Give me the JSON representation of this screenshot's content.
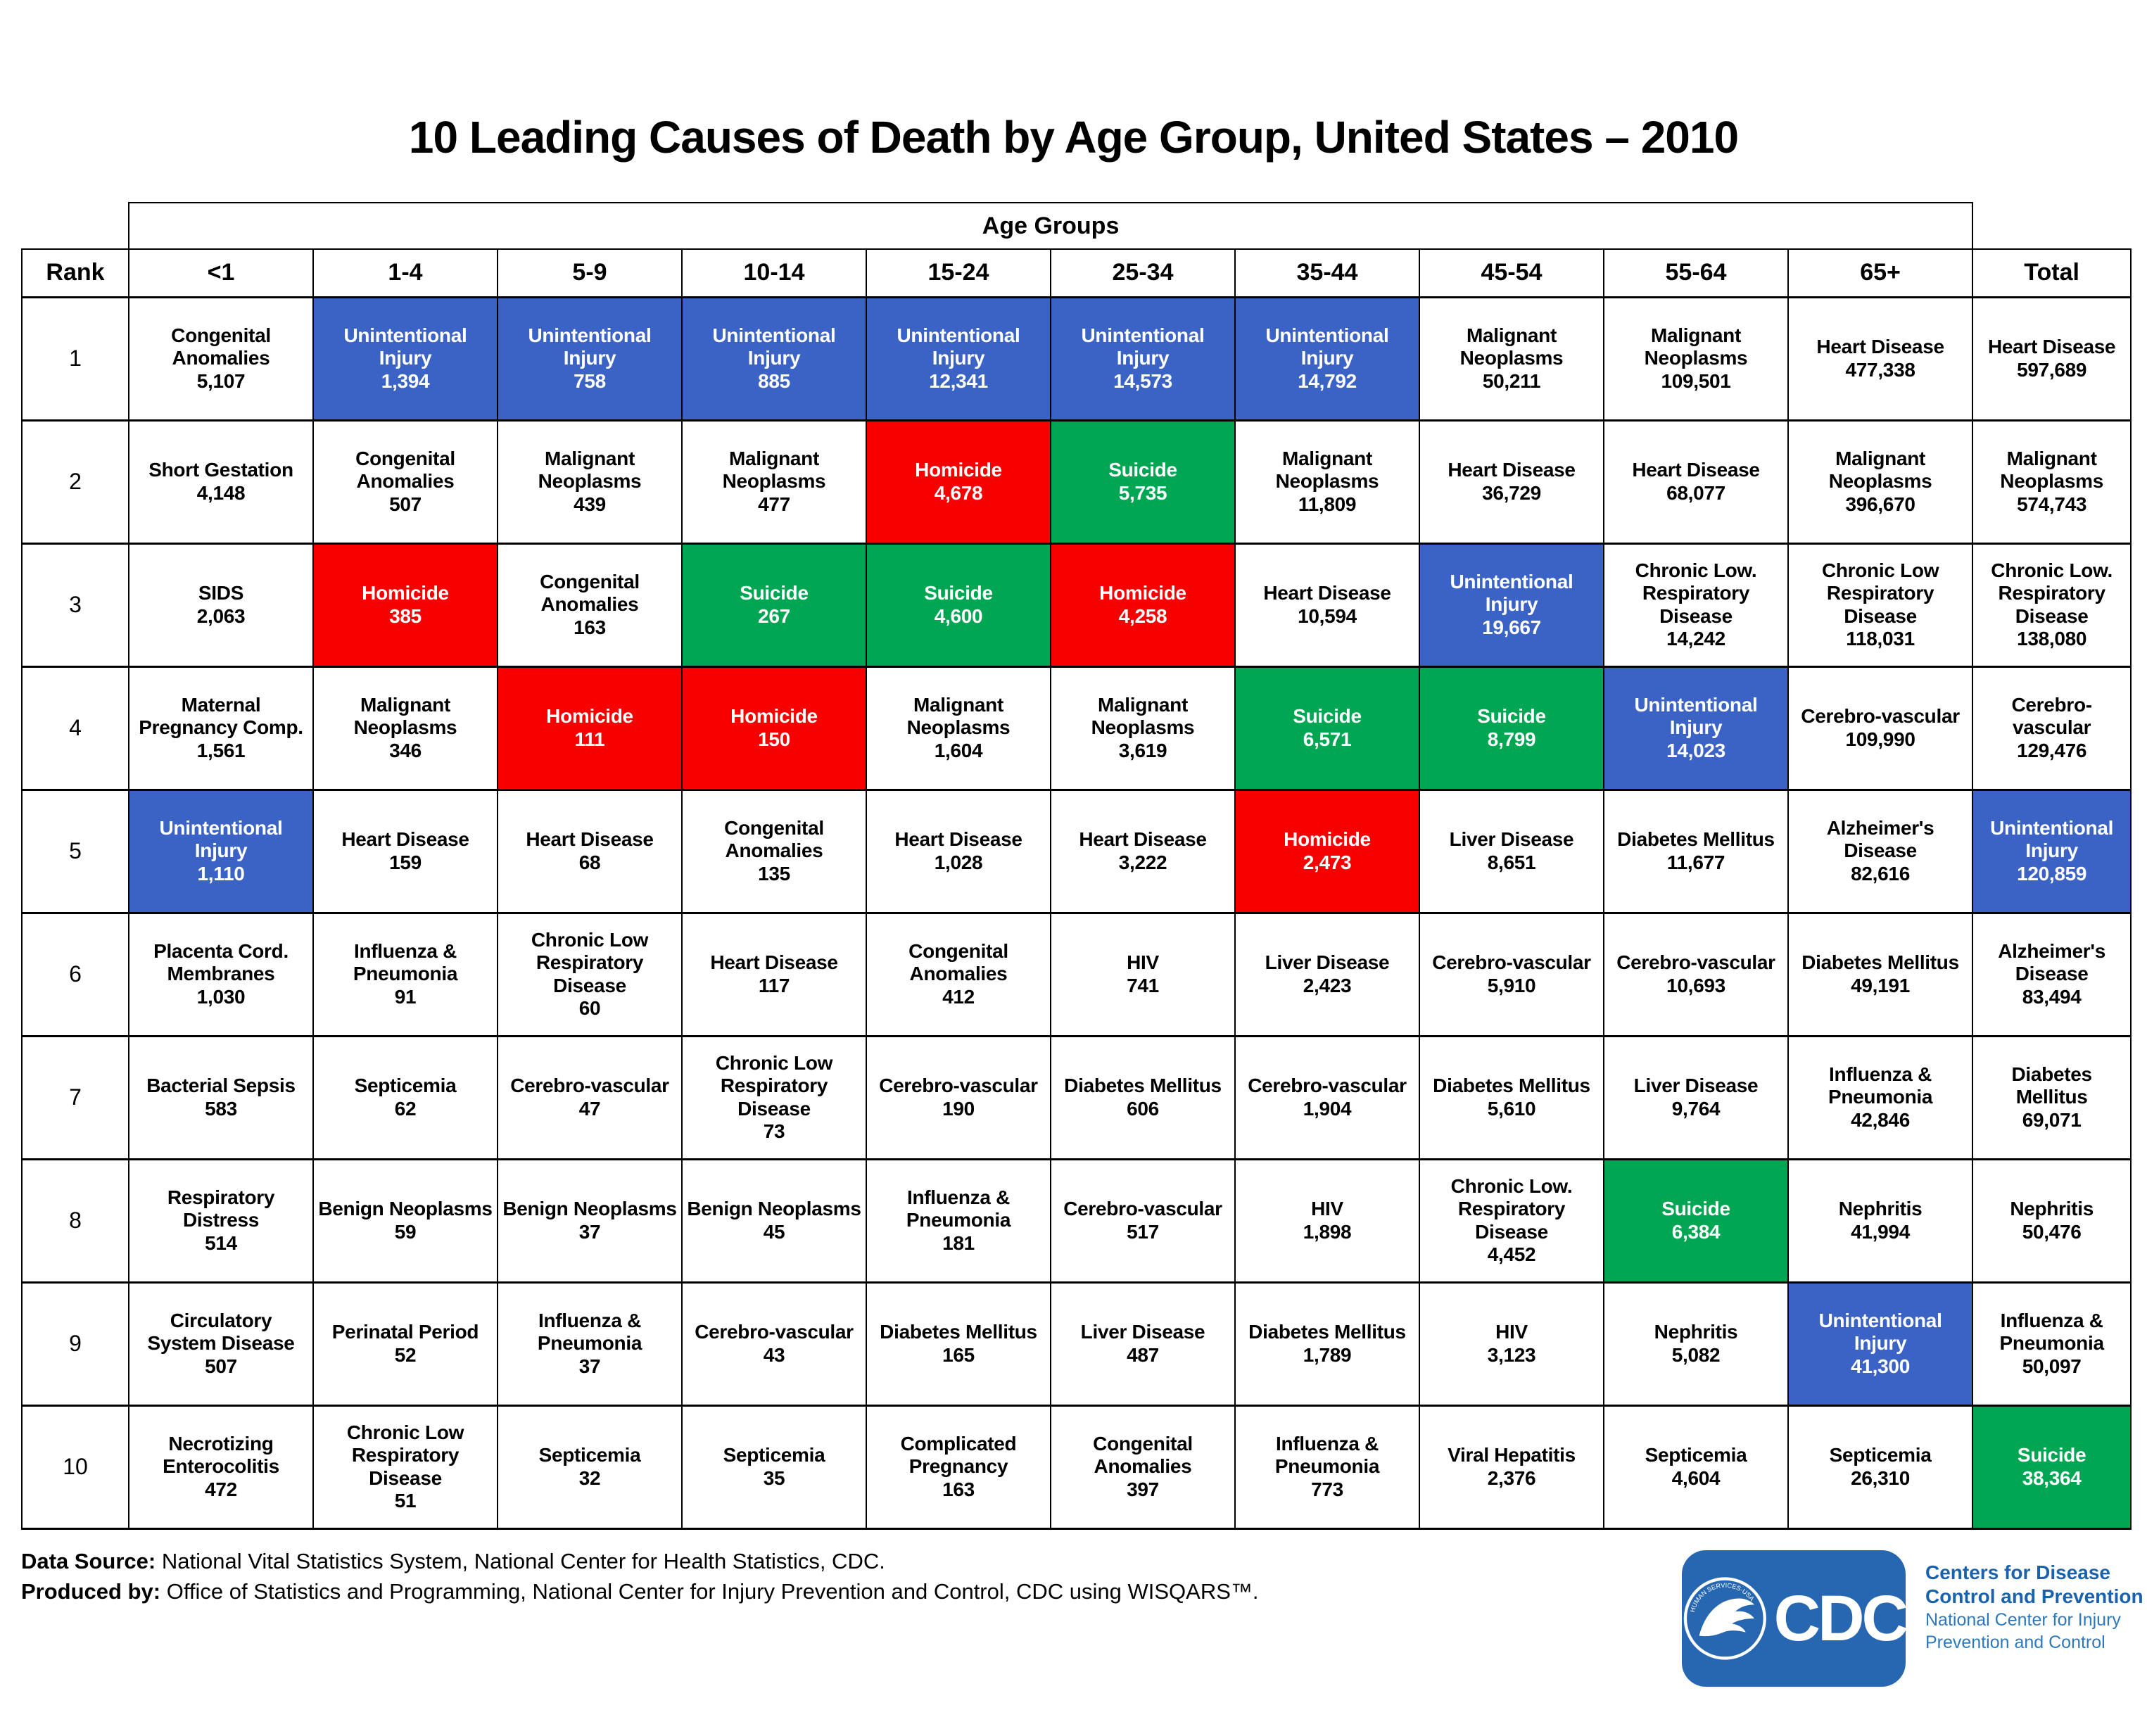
{
  "chart_data": {
    "type": "table",
    "title": "10 Leading Causes of Death by Age Group, United States – 2010",
    "group_header": "Age Groups",
    "rank_label": "Rank",
    "age_columns": [
      "<1",
      "1-4",
      "5-9",
      "10-14",
      "15-24",
      "25-34",
      "35-44",
      "45-54",
      "55-64",
      "65+"
    ],
    "total_column": "Total",
    "rows": [
      {
        "rank": 1,
        "cells": [
          {
            "cause": "Congenital Anomalies",
            "deaths": "5,107",
            "category": "other"
          },
          {
            "cause": "Unintentional Injury",
            "deaths": "1,394",
            "category": "injury"
          },
          {
            "cause": "Unintentional Injury",
            "deaths": "758",
            "category": "injury"
          },
          {
            "cause": "Unintentional Injury",
            "deaths": "885",
            "category": "injury"
          },
          {
            "cause": "Unintentional Injury",
            "deaths": "12,341",
            "category": "injury"
          },
          {
            "cause": "Unintentional Injury",
            "deaths": "14,573",
            "category": "injury"
          },
          {
            "cause": "Unintentional Injury",
            "deaths": "14,792",
            "category": "injury"
          },
          {
            "cause": "Malignant Neoplasms",
            "deaths": "50,211",
            "category": "other"
          },
          {
            "cause": "Malignant Neoplasms",
            "deaths": "109,501",
            "category": "other"
          },
          {
            "cause": "Heart Disease",
            "deaths": "477,338",
            "category": "other"
          },
          {
            "cause": "Heart Disease",
            "deaths": "597,689",
            "category": "other"
          }
        ]
      },
      {
        "rank": 2,
        "cells": [
          {
            "cause": "Short Gestation",
            "deaths": "4,148",
            "category": "other"
          },
          {
            "cause": "Congenital Anomalies",
            "deaths": "507",
            "category": "other"
          },
          {
            "cause": "Malignant Neoplasms",
            "deaths": "439",
            "category": "other"
          },
          {
            "cause": "Malignant Neoplasms",
            "deaths": "477",
            "category": "other"
          },
          {
            "cause": "Homicide",
            "deaths": "4,678",
            "category": "homicide"
          },
          {
            "cause": "Suicide",
            "deaths": "5,735",
            "category": "suicide"
          },
          {
            "cause": "Malignant Neoplasms",
            "deaths": "11,809",
            "category": "other"
          },
          {
            "cause": "Heart Disease",
            "deaths": "36,729",
            "category": "other"
          },
          {
            "cause": "Heart Disease",
            "deaths": "68,077",
            "category": "other"
          },
          {
            "cause": "Malignant Neoplasms",
            "deaths": "396,670",
            "category": "other"
          },
          {
            "cause": "Malignant Neoplasms",
            "deaths": "574,743",
            "category": "other"
          }
        ]
      },
      {
        "rank": 3,
        "cells": [
          {
            "cause": "SIDS",
            "deaths": "2,063",
            "category": "other"
          },
          {
            "cause": "Homicide",
            "deaths": "385",
            "category": "homicide"
          },
          {
            "cause": "Congenital Anomalies",
            "deaths": "163",
            "category": "other"
          },
          {
            "cause": "Suicide",
            "deaths": "267",
            "category": "suicide"
          },
          {
            "cause": "Suicide",
            "deaths": "4,600",
            "category": "suicide"
          },
          {
            "cause": "Homicide",
            "deaths": "4,258",
            "category": "homicide"
          },
          {
            "cause": "Heart Disease",
            "deaths": "10,594",
            "category": "other"
          },
          {
            "cause": "Unintentional Injury",
            "deaths": "19,667",
            "category": "injury"
          },
          {
            "cause": "Chronic Low. Respiratory Disease",
            "deaths": "14,242",
            "category": "other"
          },
          {
            "cause": "Chronic Low Respiratory Disease",
            "deaths": "118,031",
            "category": "other"
          },
          {
            "cause": "Chronic Low. Respiratory Disease",
            "deaths": "138,080",
            "category": "other"
          }
        ]
      },
      {
        "rank": 4,
        "cells": [
          {
            "cause": "Maternal Pregnancy Comp.",
            "deaths": "1,561",
            "category": "other"
          },
          {
            "cause": "Malignant Neoplasms",
            "deaths": "346",
            "category": "other"
          },
          {
            "cause": "Homicide",
            "deaths": "111",
            "category": "homicide"
          },
          {
            "cause": "Homicide",
            "deaths": "150",
            "category": "homicide"
          },
          {
            "cause": "Malignant Neoplasms",
            "deaths": "1,604",
            "category": "other"
          },
          {
            "cause": "Malignant Neoplasms",
            "deaths": "3,619",
            "category": "other"
          },
          {
            "cause": "Suicide",
            "deaths": "6,571",
            "category": "suicide"
          },
          {
            "cause": "Suicide",
            "deaths": "8,799",
            "category": "suicide"
          },
          {
            "cause": "Unintentional Injury",
            "deaths": "14,023",
            "category": "injury"
          },
          {
            "cause": "Cerebro-vascular",
            "deaths": "109,990",
            "category": "other"
          },
          {
            "cause": "Cerebro-vascular",
            "deaths": "129,476",
            "category": "other"
          }
        ]
      },
      {
        "rank": 5,
        "cells": [
          {
            "cause": "Unintentional Injury",
            "deaths": "1,110",
            "category": "injury"
          },
          {
            "cause": "Heart Disease",
            "deaths": "159",
            "category": "other"
          },
          {
            "cause": "Heart Disease",
            "deaths": "68",
            "category": "other"
          },
          {
            "cause": "Congenital Anomalies",
            "deaths": "135",
            "category": "other"
          },
          {
            "cause": "Heart Disease",
            "deaths": "1,028",
            "category": "other"
          },
          {
            "cause": "Heart Disease",
            "deaths": "3,222",
            "category": "other"
          },
          {
            "cause": "Homicide",
            "deaths": "2,473",
            "category": "homicide"
          },
          {
            "cause": "Liver Disease",
            "deaths": "8,651",
            "category": "other"
          },
          {
            "cause": "Diabetes Mellitus",
            "deaths": "11,677",
            "category": "other"
          },
          {
            "cause": "Alzheimer's Disease",
            "deaths": "82,616",
            "category": "other"
          },
          {
            "cause": "Unintentional Injury",
            "deaths": "120,859",
            "category": "injury"
          }
        ]
      },
      {
        "rank": 6,
        "cells": [
          {
            "cause": "Placenta Cord. Membranes",
            "deaths": "1,030",
            "category": "other"
          },
          {
            "cause": "Influenza & Pneumonia",
            "deaths": "91",
            "category": "other"
          },
          {
            "cause": "Chronic Low Respiratory Disease",
            "deaths": "60",
            "category": "other"
          },
          {
            "cause": "Heart Disease",
            "deaths": "117",
            "category": "other"
          },
          {
            "cause": "Congenital Anomalies",
            "deaths": "412",
            "category": "other"
          },
          {
            "cause": "HIV",
            "deaths": "741",
            "category": "other"
          },
          {
            "cause": "Liver Disease",
            "deaths": "2,423",
            "category": "other"
          },
          {
            "cause": "Cerebro-vascular",
            "deaths": "5,910",
            "category": "other"
          },
          {
            "cause": "Cerebro-vascular",
            "deaths": "10,693",
            "category": "other"
          },
          {
            "cause": "Diabetes Mellitus",
            "deaths": "49,191",
            "category": "other"
          },
          {
            "cause": "Alzheimer's Disease",
            "deaths": "83,494",
            "category": "other"
          }
        ]
      },
      {
        "rank": 7,
        "cells": [
          {
            "cause": "Bacterial Sepsis",
            "deaths": "583",
            "category": "other"
          },
          {
            "cause": "Septicemia",
            "deaths": "62",
            "category": "other"
          },
          {
            "cause": "Cerebro-vascular",
            "deaths": "47",
            "category": "other"
          },
          {
            "cause": "Chronic Low Respiratory Disease",
            "deaths": "73",
            "category": "other"
          },
          {
            "cause": "Cerebro-vascular",
            "deaths": "190",
            "category": "other"
          },
          {
            "cause": "Diabetes Mellitus",
            "deaths": "606",
            "category": "other"
          },
          {
            "cause": "Cerebro-vascular",
            "deaths": "1,904",
            "category": "other"
          },
          {
            "cause": "Diabetes Mellitus",
            "deaths": "5,610",
            "category": "other"
          },
          {
            "cause": "Liver Disease",
            "deaths": "9,764",
            "category": "other"
          },
          {
            "cause": "Influenza & Pneumonia",
            "deaths": "42,846",
            "category": "other"
          },
          {
            "cause": "Diabetes Mellitus",
            "deaths": "69,071",
            "category": "other"
          }
        ]
      },
      {
        "rank": 8,
        "cells": [
          {
            "cause": "Respiratory Distress",
            "deaths": "514",
            "category": "other"
          },
          {
            "cause": "Benign Neoplasms",
            "deaths": "59",
            "category": "other"
          },
          {
            "cause": "Benign Neoplasms",
            "deaths": "37",
            "category": "other"
          },
          {
            "cause": "Benign Neoplasms",
            "deaths": "45",
            "category": "other"
          },
          {
            "cause": "Influenza & Pneumonia",
            "deaths": "181",
            "category": "other"
          },
          {
            "cause": "Cerebro-vascular",
            "deaths": "517",
            "category": "other"
          },
          {
            "cause": "HIV",
            "deaths": "1,898",
            "category": "other"
          },
          {
            "cause": "Chronic Low. Respiratory Disease",
            "deaths": "4,452",
            "category": "other"
          },
          {
            "cause": "Suicide",
            "deaths": "6,384",
            "category": "suicide"
          },
          {
            "cause": "Nephritis",
            "deaths": "41,994",
            "category": "other"
          },
          {
            "cause": "Nephritis",
            "deaths": "50,476",
            "category": "other"
          }
        ]
      },
      {
        "rank": 9,
        "cells": [
          {
            "cause": "Circulatory System Disease",
            "deaths": "507",
            "category": "other"
          },
          {
            "cause": "Perinatal Period",
            "deaths": "52",
            "category": "other"
          },
          {
            "cause": "Influenza & Pneumonia",
            "deaths": "37",
            "category": "other"
          },
          {
            "cause": "Cerebro-vascular",
            "deaths": "43",
            "category": "other"
          },
          {
            "cause": "Diabetes Mellitus",
            "deaths": "165",
            "category": "other"
          },
          {
            "cause": "Liver Disease",
            "deaths": "487",
            "category": "other"
          },
          {
            "cause": "Diabetes Mellitus",
            "deaths": "1,789",
            "category": "other"
          },
          {
            "cause": "HIV",
            "deaths": "3,123",
            "category": "other"
          },
          {
            "cause": "Nephritis",
            "deaths": "5,082",
            "category": "other"
          },
          {
            "cause": "Unintentional Injury",
            "deaths": "41,300",
            "category": "injury"
          },
          {
            "cause": "Influenza & Pneumonia",
            "deaths": "50,097",
            "category": "other"
          }
        ]
      },
      {
        "rank": 10,
        "cells": [
          {
            "cause": "Necrotizing Enterocolitis",
            "deaths": "472",
            "category": "other"
          },
          {
            "cause": "Chronic Low Respiratory Disease",
            "deaths": "51",
            "category": "other"
          },
          {
            "cause": "Septicemia",
            "deaths": "32",
            "category": "other"
          },
          {
            "cause": "Septicemia",
            "deaths": "35",
            "category": "other"
          },
          {
            "cause": "Complicated Pregnancy",
            "deaths": "163",
            "category": "other"
          },
          {
            "cause": "Congenital Anomalies",
            "deaths": "397",
            "category": "other"
          },
          {
            "cause": "Influenza & Pneumonia",
            "deaths": "773",
            "category": "other"
          },
          {
            "cause": "Viral Hepatitis",
            "deaths": "2,376",
            "category": "other"
          },
          {
            "cause": "Septicemia",
            "deaths": "4,604",
            "category": "other"
          },
          {
            "cause": "Septicemia",
            "deaths": "26,310",
            "category": "other"
          },
          {
            "cause": "Suicide",
            "deaths": "38,364",
            "category": "suicide"
          }
        ]
      }
    ]
  },
  "colors": {
    "unintentional_injury": "#3B63C6",
    "homicide": "#F80000",
    "suicide": "#00A651",
    "other_bg": "#FFFFFF",
    "cell_text_on_color": "#FFFFFF",
    "logo_box_blue": "#2767B1",
    "agency_bold_blue": "#1B62AE",
    "agency_light_blue": "#2E79BC"
  },
  "footer": {
    "data_source_label": "Data Source:",
    "data_source_text": " National Vital Statistics System, National Center for Health Statistics, CDC.",
    "produced_by_label": "Produced by:",
    "produced_by_text": " Office of Statistics and Programming, National Center for Injury Prevention and Control, CDC using WISQARS™."
  },
  "logo": {
    "cdc_text": "CDC",
    "ring_text": "HUMAN SERVICES·USA",
    "line1": "Centers for Disease",
    "line2": "Control and Prevention",
    "line3": "National Center for Injury",
    "line4": "Prevention and Control"
  }
}
